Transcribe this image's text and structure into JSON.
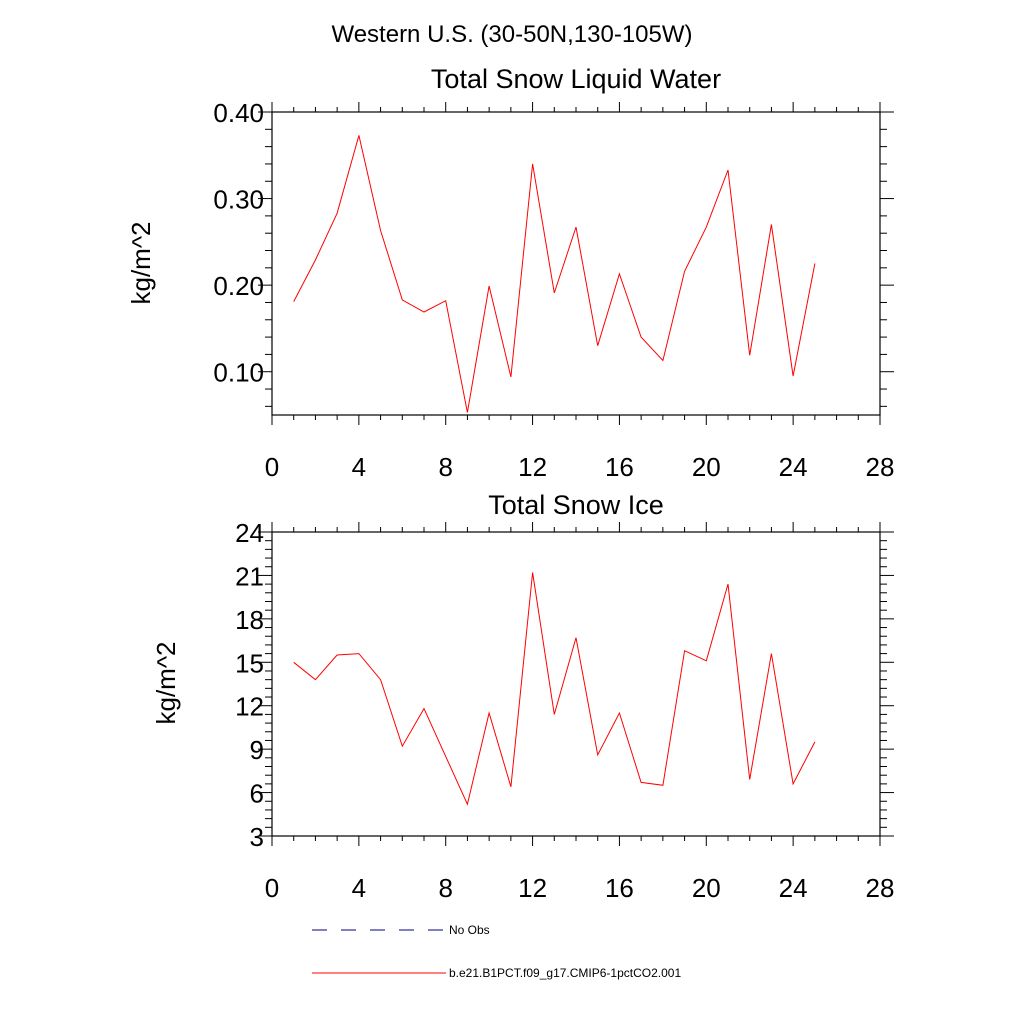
{
  "figure": {
    "title": "Western U.S. (30-50N,130-105W)"
  },
  "chart_data": [
    {
      "type": "line",
      "title": "Total Snow Liquid Water",
      "xlabel": "",
      "ylabel": "kg/m^2",
      "xlim": [
        0,
        28
      ],
      "ylim": [
        0.05,
        0.4
      ],
      "xticks": [
        0,
        4,
        8,
        12,
        16,
        20,
        24,
        28
      ],
      "yticks": [
        0.1,
        0.2,
        0.3,
        0.4
      ],
      "ytick_labels": [
        "0.10",
        "0.20",
        "0.30",
        "0.40"
      ],
      "grid": false,
      "series": [
        {
          "name": "b.e21.B1PCT.f09_g17.CMIP6-1pctCO2.001",
          "color": "#ff0000",
          "x": [
            1,
            2,
            3,
            4,
            5,
            6,
            7,
            8,
            9,
            10,
            11,
            12,
            13,
            14,
            15,
            16,
            17,
            18,
            19,
            20,
            21,
            22,
            23,
            24,
            25
          ],
          "y": [
            0.181,
            0.229,
            0.283,
            0.373,
            0.263,
            0.183,
            0.169,
            0.182,
            0.053,
            0.199,
            0.094,
            0.34,
            0.191,
            0.267,
            0.13,
            0.213,
            0.14,
            0.113,
            0.216,
            0.267,
            0.333,
            0.119,
            0.27,
            0.095,
            0.225
          ]
        }
      ]
    },
    {
      "type": "line",
      "title": "Total Snow Ice",
      "xlabel": "",
      "ylabel": "kg/m^2",
      "xlim": [
        0,
        28
      ],
      "ylim": [
        3,
        24
      ],
      "xticks": [
        0,
        4,
        8,
        12,
        16,
        20,
        24,
        28
      ],
      "yticks": [
        3,
        6,
        9,
        12,
        15,
        18,
        21,
        24
      ],
      "ytick_labels": [
        "3",
        "6",
        "9",
        "12",
        "15",
        "18",
        "21",
        "24"
      ],
      "grid": false,
      "series": [
        {
          "name": "b.e21.B1PCT.f09_g17.CMIP6-1pctCO2.001",
          "color": "#ff0000",
          "x": [
            1,
            2,
            3,
            4,
            5,
            6,
            7,
            8,
            9,
            10,
            11,
            12,
            13,
            14,
            15,
            16,
            17,
            18,
            19,
            20,
            21,
            22,
            23,
            24,
            25
          ],
          "y": [
            15.0,
            13.8,
            15.5,
            15.6,
            13.8,
            9.2,
            11.8,
            8.5,
            5.2,
            11.5,
            6.4,
            21.2,
            11.4,
            16.7,
            8.6,
            11.5,
            6.7,
            6.5,
            15.8,
            15.1,
            20.4,
            6.9,
            15.6,
            6.6,
            9.5
          ]
        }
      ]
    }
  ],
  "legend": {
    "items": [
      {
        "label": "No Obs",
        "color": "#000080",
        "dash": "dashed"
      },
      {
        "label": "b.e21.B1PCT.f09_g17.CMIP6-1pctCO2.001",
        "color": "#ff0000",
        "dash": "solid"
      }
    ]
  }
}
